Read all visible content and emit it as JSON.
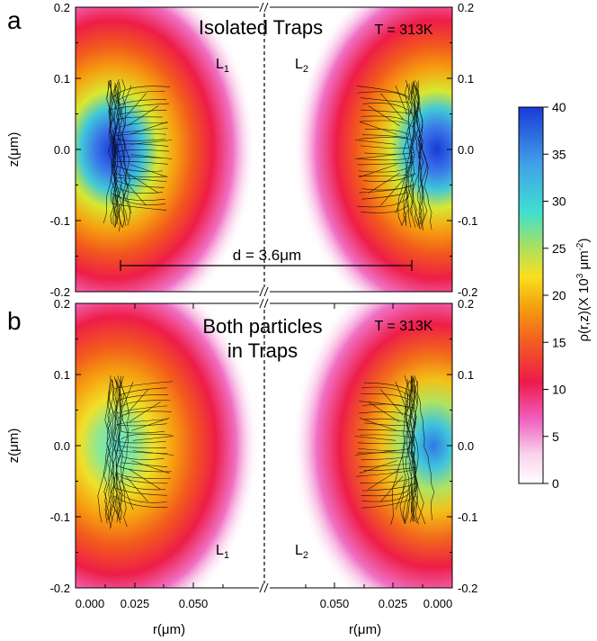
{
  "chart_data": [
    {
      "type": "heatmap",
      "panel_label": "a",
      "title": "Isolated Traps",
      "temperature": "T = 313K",
      "labels": {
        "left_trap": "L",
        "left_sub": "1",
        "right_trap": "L",
        "right_sub": "2"
      },
      "annotation": "d = 3.6μm",
      "ylabel": "z(μm)",
      "ylim": [
        -0.2,
        0.2
      ],
      "yticks": [
        "0.2",
        "0.1",
        "0.0",
        "-0.1",
        "-0.2"
      ],
      "xlim_left": [
        0.0,
        0.07
      ],
      "xlim_right_reversed": [
        0.07,
        0.0
      ],
      "peak_density": {
        "left": 40,
        "right": 40
      }
    },
    {
      "type": "heatmap",
      "panel_label": "b",
      "title_line1": "Both particles",
      "title_line2": "in Traps",
      "temperature": "T = 313K",
      "labels": {
        "left_trap": "L",
        "left_sub": "1",
        "right_trap": "L",
        "right_sub": "2"
      },
      "ylabel": "z(μm)",
      "xlabel": "r(μm)",
      "ylim": [
        -0.2,
        0.2
      ],
      "yticks": [
        "0.2",
        "0.1",
        "0.0",
        "-0.1",
        "-0.2"
      ],
      "xticks_left": [
        "0.000",
        "0.025",
        "0.050"
      ],
      "xticks_right": [
        "0.050",
        "0.025",
        "0.000"
      ],
      "peak_density": {
        "left": 28,
        "right": 34
      }
    }
  ],
  "colorbar": {
    "label": "ρ(r,z)(X 10",
    "label_sup1": "3",
    "label_mid": " μm",
    "label_sup2": "-2",
    "label_end": ")",
    "ticks": [
      "40",
      "35",
      "30",
      "25",
      "20",
      "15",
      "10",
      "5",
      "0"
    ],
    "range": [
      0,
      40
    ],
    "colors": [
      "#ffffff",
      "#f9c8e8",
      "#f060c0",
      "#ee1a4a",
      "#f26020",
      "#f4a010",
      "#f8e020",
      "#a8e060",
      "#40e0d0",
      "#40a0e8",
      "#1a3ad8"
    ]
  }
}
